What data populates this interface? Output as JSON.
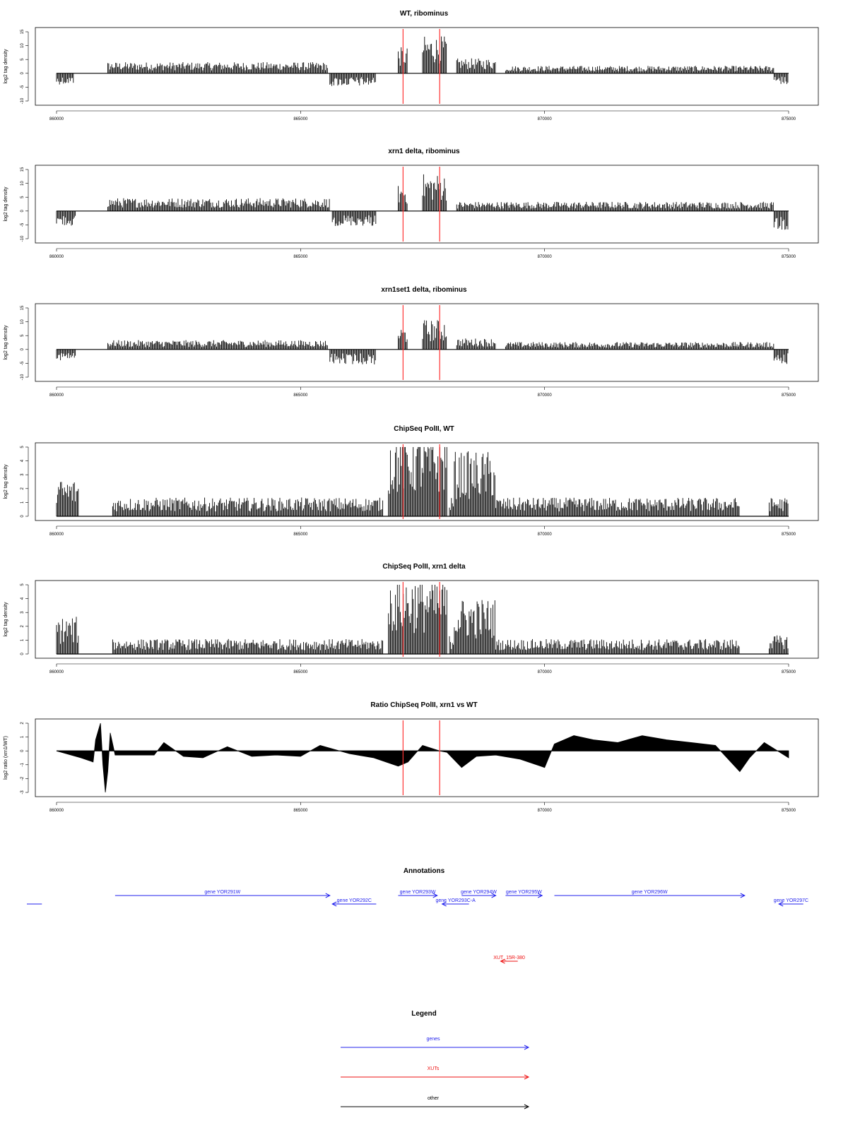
{
  "colors": {
    "signal": "#000000",
    "marker": "#ff3333",
    "gene": "#2222ee",
    "xut": "#ee1111",
    "other": "#000000"
  },
  "chart_data": [
    {
      "type": "bar",
      "title": "WT, ribominus",
      "ylabel": "log2 tag density",
      "xlim": [
        860000,
        875000
      ],
      "ylim": [
        -10,
        15
      ],
      "xticks": [
        "860000",
        "865000",
        "870000",
        "875000"
      ],
      "yticks": [
        "-10",
        "-5",
        "0",
        "5",
        "10",
        "15"
      ],
      "markers_x": [
        867100,
        867850
      ],
      "segments": [
        {
          "start": 860000,
          "end": 860350,
          "value": -3
        },
        {
          "start": 861050,
          "end": 865550,
          "value": 3
        },
        {
          "start": 865600,
          "end": 866550,
          "value": -3.5
        },
        {
          "start": 867000,
          "end": 867200,
          "value": 7
        },
        {
          "start": 867500,
          "end": 868000,
          "value": 10
        },
        {
          "start": 868200,
          "end": 869000,
          "value": 4
        },
        {
          "start": 869200,
          "end": 874700,
          "value": 2
        },
        {
          "start": 874700,
          "end": 875000,
          "value": -3
        }
      ]
    },
    {
      "type": "bar",
      "title": "xrn1 delta, ribominus",
      "ylabel": "log2 tag density",
      "xlim": [
        860000,
        875000
      ],
      "ylim": [
        -10,
        15
      ],
      "xticks": [
        "860000",
        "865000",
        "870000",
        "875000"
      ],
      "yticks": [
        "-10",
        "-5",
        "0",
        "5",
        "10",
        "15"
      ],
      "markers_x": [
        867100,
        867850
      ],
      "segments": [
        {
          "start": 860000,
          "end": 860400,
          "value": -4
        },
        {
          "start": 861050,
          "end": 865600,
          "value": 3.5
        },
        {
          "start": 865650,
          "end": 866550,
          "value": -4
        },
        {
          "start": 867000,
          "end": 867200,
          "value": 7
        },
        {
          "start": 867500,
          "end": 868000,
          "value": 10
        },
        {
          "start": 868200,
          "end": 874700,
          "value": 2.5
        },
        {
          "start": 874700,
          "end": 875000,
          "value": -5
        }
      ]
    },
    {
      "type": "bar",
      "title": "xrn1set1 delta, ribominus",
      "ylabel": "log2 tag density",
      "xlim": [
        860000,
        875000
      ],
      "ylim": [
        -10,
        15
      ],
      "xticks": [
        "860000",
        "865000",
        "870000",
        "875000"
      ],
      "yticks": [
        "-10",
        "-5",
        "0",
        "5",
        "10",
        "15"
      ],
      "markers_x": [
        867100,
        867850
      ],
      "segments": [
        {
          "start": 860000,
          "end": 860400,
          "value": -3
        },
        {
          "start": 861050,
          "end": 865550,
          "value": 2.5
        },
        {
          "start": 865600,
          "end": 866550,
          "value": -4
        },
        {
          "start": 867000,
          "end": 867200,
          "value": 6
        },
        {
          "start": 867500,
          "end": 868000,
          "value": 8
        },
        {
          "start": 868200,
          "end": 869000,
          "value": 3
        },
        {
          "start": 869200,
          "end": 874700,
          "value": 2
        },
        {
          "start": 874700,
          "end": 875000,
          "value": -4
        }
      ]
    },
    {
      "type": "bar",
      "title": "ChipSeq PolII, WT",
      "ylabel": "log2 tag density",
      "xlim": [
        860000,
        875000
      ],
      "ylim": [
        0,
        5
      ],
      "xticks": [
        "860000",
        "865000",
        "870000",
        "875000"
      ],
      "yticks": [
        "0",
        "1",
        "2",
        "3",
        "4",
        "5"
      ],
      "markers_x": [
        867100,
        867850
      ],
      "segments": [
        {
          "start": 860000,
          "end": 860450,
          "value": 2
        },
        {
          "start": 861150,
          "end": 866700,
          "value": 1
        },
        {
          "start": 866800,
          "end": 868000,
          "value": 4.5
        },
        {
          "start": 868050,
          "end": 868150,
          "value": 1
        },
        {
          "start": 868150,
          "end": 869000,
          "value": 3.5
        },
        {
          "start": 869000,
          "end": 874000,
          "value": 1
        },
        {
          "start": 874600,
          "end": 875000,
          "value": 1
        }
      ]
    },
    {
      "type": "bar",
      "title": "ChipSeq PolII, xrn1 delta",
      "ylabel": "log2 tag density",
      "xlim": [
        860000,
        875000
      ],
      "ylim": [
        0,
        5
      ],
      "xticks": [
        "860000",
        "865000",
        "870000",
        "875000"
      ],
      "yticks": [
        "0",
        "1",
        "2",
        "3",
        "4",
        "5"
      ],
      "markers_x": [
        867100,
        867850
      ],
      "segments": [
        {
          "start": 860000,
          "end": 860450,
          "value": 2
        },
        {
          "start": 861150,
          "end": 866700,
          "value": 0.8
        },
        {
          "start": 866800,
          "end": 868000,
          "value": 4.2
        },
        {
          "start": 868050,
          "end": 868150,
          "value": 1
        },
        {
          "start": 868150,
          "end": 869000,
          "value": 3
        },
        {
          "start": 869000,
          "end": 874000,
          "value": 0.8
        },
        {
          "start": 874600,
          "end": 875000,
          "value": 1
        }
      ]
    },
    {
      "type": "area",
      "title": "Ratio ChipSeq PolII, xrn1 vs WT",
      "ylabel": "log2 ratio (xrn1/WT)",
      "xlim": [
        860000,
        875000
      ],
      "ylim": [
        -3,
        2
      ],
      "xticks": [
        "860000",
        "865000",
        "870000",
        "875000"
      ],
      "yticks": [
        "-3",
        "-2",
        "-1",
        "0",
        "1",
        "2"
      ],
      "markers_x": [
        867100,
        867850
      ],
      "x": [
        860000,
        860500,
        860750,
        860800,
        860900,
        860950,
        861000,
        861050,
        861100,
        861200,
        862000,
        862200,
        862600,
        863000,
        863500,
        864000,
        864500,
        865000,
        865400,
        866000,
        866500,
        867000,
        867200,
        867500,
        867850,
        868000,
        868300,
        868600,
        869000,
        869500,
        870000,
        870200,
        870600,
        871000,
        871500,
        872000,
        872500,
        873000,
        873500,
        874000,
        874200,
        874500,
        875000
      ],
      "y": [
        0,
        -0.5,
        -0.8,
        0.8,
        2,
        -1,
        -3,
        -1.5,
        1.3,
        -0.3,
        -0.3,
        0.6,
        -0.4,
        -0.5,
        0.3,
        -0.4,
        -0.3,
        -0.4,
        0.4,
        -0.2,
        -0.5,
        -1.1,
        -0.8,
        0.4,
        0,
        -0.1,
        -1.2,
        -0.4,
        -0.3,
        -0.6,
        -1.2,
        0.5,
        1.1,
        0.8,
        0.6,
        1.1,
        0.8,
        0.6,
        0.4,
        -1.5,
        -0.5,
        0.6,
        -0.5
      ]
    }
  ],
  "annotations": {
    "title": "Annotations",
    "features": [
      {
        "label": "",
        "start": 857000,
        "end": 859700,
        "strand": "none",
        "row": 1,
        "type": "gene"
      },
      {
        "label": "gene YOR291W",
        "start": 861200,
        "end": 865600,
        "strand": "+",
        "row": 0,
        "type": "gene"
      },
      {
        "label": "gene YOR292C",
        "start": 865650,
        "end": 866550,
        "strand": "-",
        "row": 1,
        "type": "gene"
      },
      {
        "label": "gene YOR293W",
        "start": 867000,
        "end": 867800,
        "strand": "+",
        "row": 0,
        "type": "gene"
      },
      {
        "label": "gene YOR293C-A",
        "start": 867900,
        "end": 868450,
        "strand": "-",
        "row": 1,
        "type": "gene"
      },
      {
        "label": "gene YOR294W",
        "start": 868300,
        "end": 869000,
        "strand": "+",
        "row": 0,
        "type": "gene"
      },
      {
        "label": "gene YOR295W",
        "start": 869200,
        "end": 869950,
        "strand": "+",
        "row": 0,
        "type": "gene"
      },
      {
        "label": "gene YOR296W",
        "start": 870200,
        "end": 874100,
        "strand": "+",
        "row": 0,
        "type": "gene"
      },
      {
        "label": "gene YOR297C",
        "start": 874800,
        "end": 875300,
        "strand": "-",
        "row": 1,
        "type": "gene"
      },
      {
        "label": "XUT_15R-380",
        "start": 869100,
        "end": 869450,
        "strand": "-",
        "row": 0,
        "type": "xut"
      }
    ]
  },
  "legend": {
    "title": "Legend",
    "items": [
      {
        "label": "genes",
        "type": "gene"
      },
      {
        "label": "XUTs",
        "type": "xut"
      },
      {
        "label": "other",
        "type": "other"
      }
    ]
  }
}
